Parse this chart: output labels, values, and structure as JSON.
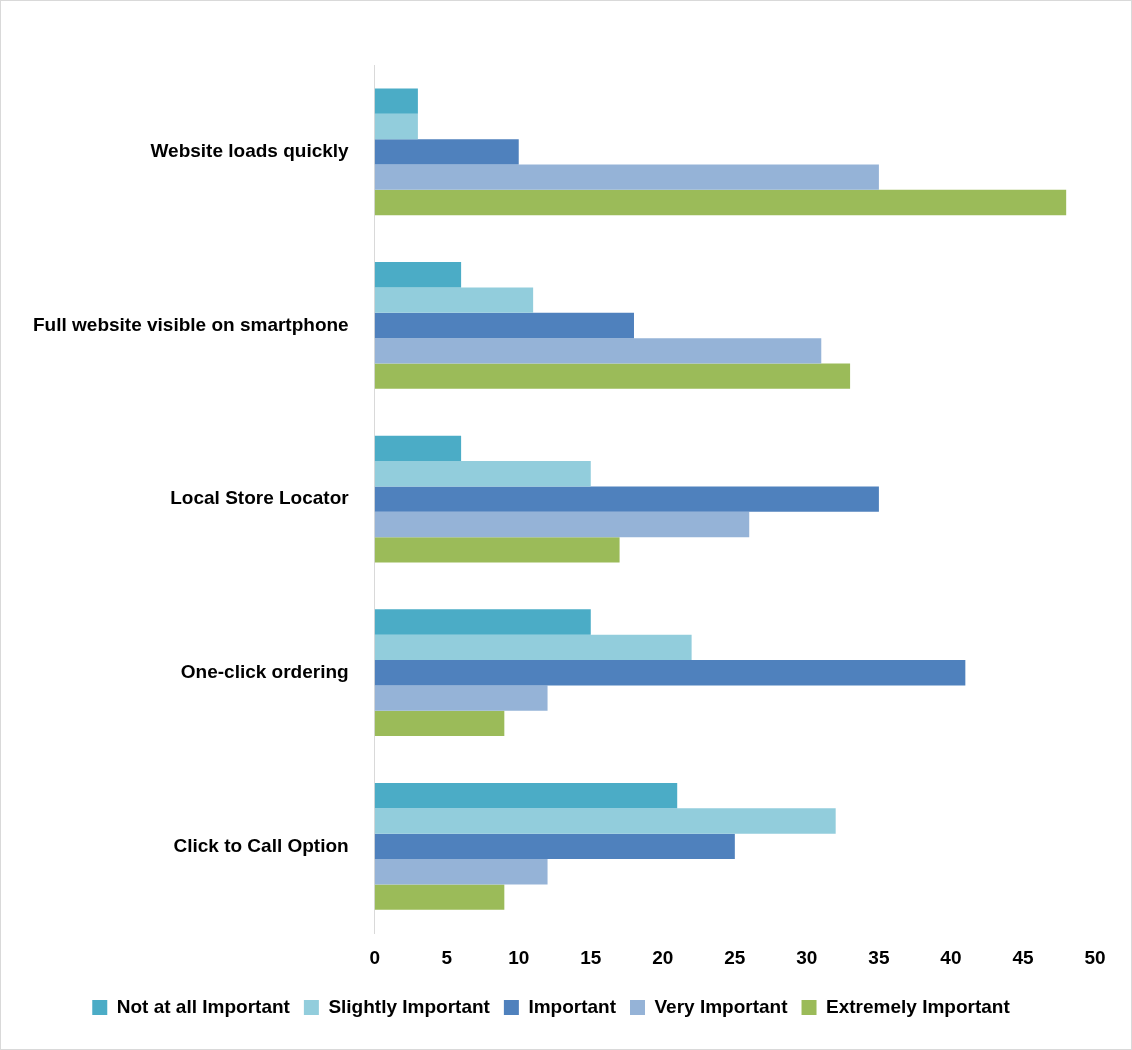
{
  "chart_data": {
    "type": "bar",
    "orientation": "horizontal",
    "categories": [
      "Website loads quickly",
      "Full website visible on smartphone",
      "Local Store Locator",
      "One-click ordering",
      "Click to Call Option"
    ],
    "series": [
      {
        "name": "Not at all Important",
        "color": "#4bacc6",
        "values": [
          3,
          6,
          6,
          15,
          21
        ]
      },
      {
        "name": "Slightly Important",
        "color": "#92cddc",
        "values": [
          3,
          11,
          15,
          22,
          32
        ]
      },
      {
        "name": "Important",
        "color": "#4f81bd",
        "values": [
          10,
          18,
          35,
          41,
          25
        ]
      },
      {
        "name": "Very Important",
        "color": "#95b3d7",
        "values": [
          35,
          31,
          26,
          12,
          12
        ]
      },
      {
        "name": "Extremely Important",
        "color": "#9bbb59",
        "values": [
          48,
          33,
          17,
          9,
          9
        ]
      }
    ],
    "xlim": [
      0,
      50
    ],
    "xticks": [
      0,
      5,
      10,
      15,
      20,
      25,
      30,
      35,
      40,
      45,
      50
    ],
    "grid": false,
    "legend": "bottom"
  }
}
